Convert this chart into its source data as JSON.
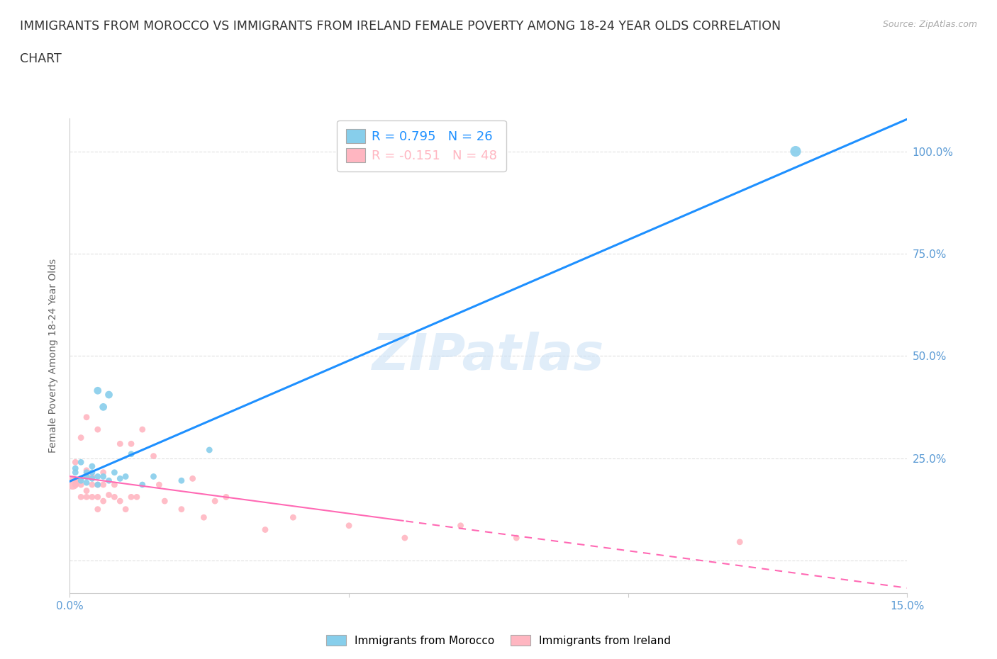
{
  "title_line1": "IMMIGRANTS FROM MOROCCO VS IMMIGRANTS FROM IRELAND FEMALE POVERTY AMONG 18-24 YEAR OLDS CORRELATION",
  "title_line2": "CHART",
  "source": "Source: ZipAtlas.com",
  "ylabel": "Female Poverty Among 18-24 Year Olds",
  "xlim": [
    0.0,
    0.15
  ],
  "ylim": [
    -0.08,
    1.08
  ],
  "xticks": [
    0.0,
    0.05,
    0.1,
    0.15
  ],
  "xticklabels": [
    "0.0%",
    "",
    "",
    "15.0%"
  ],
  "yticks_right": [
    0.0,
    0.25,
    0.5,
    0.75,
    1.0
  ],
  "yticklabels_right": [
    "",
    "25.0%",
    "50.0%",
    "75.0%",
    "100.0%"
  ],
  "morocco_color": "#87CEEB",
  "ireland_color": "#FFB6C1",
  "morocco_line_color": "#1E90FF",
  "ireland_line_color": "#FF69B4",
  "morocco_R": 0.795,
  "morocco_N": 26,
  "ireland_R": -0.151,
  "ireland_N": 48,
  "background_color": "#ffffff",
  "watermark": "ZIPatlas",
  "morocco_x": [
    0.001,
    0.001,
    0.002,
    0.002,
    0.003,
    0.003,
    0.003,
    0.004,
    0.004,
    0.004,
    0.005,
    0.005,
    0.005,
    0.006,
    0.006,
    0.007,
    0.007,
    0.008,
    0.009,
    0.01,
    0.011,
    0.013,
    0.015,
    0.02,
    0.025,
    0.13
  ],
  "morocco_y": [
    0.215,
    0.225,
    0.195,
    0.24,
    0.19,
    0.205,
    0.215,
    0.2,
    0.215,
    0.23,
    0.185,
    0.205,
    0.415,
    0.205,
    0.375,
    0.195,
    0.405,
    0.215,
    0.2,
    0.205,
    0.26,
    0.185,
    0.205,
    0.195,
    0.27,
    1.0
  ],
  "morocco_sizes": [
    40,
    40,
    40,
    40,
    40,
    40,
    40,
    40,
    40,
    40,
    40,
    40,
    60,
    40,
    60,
    40,
    60,
    40,
    40,
    40,
    40,
    40,
    40,
    40,
    40,
    120
  ],
  "ireland_x": [
    0.0005,
    0.001,
    0.001,
    0.001,
    0.002,
    0.002,
    0.002,
    0.002,
    0.003,
    0.003,
    0.003,
    0.003,
    0.003,
    0.004,
    0.004,
    0.004,
    0.005,
    0.005,
    0.005,
    0.005,
    0.006,
    0.006,
    0.006,
    0.007,
    0.008,
    0.008,
    0.009,
    0.009,
    0.01,
    0.011,
    0.011,
    0.012,
    0.013,
    0.015,
    0.016,
    0.017,
    0.02,
    0.022,
    0.024,
    0.026,
    0.028,
    0.035,
    0.04,
    0.05,
    0.06,
    0.07,
    0.08,
    0.12
  ],
  "ireland_y": [
    0.19,
    0.185,
    0.195,
    0.24,
    0.155,
    0.185,
    0.2,
    0.3,
    0.155,
    0.17,
    0.205,
    0.22,
    0.35,
    0.155,
    0.185,
    0.205,
    0.125,
    0.155,
    0.185,
    0.32,
    0.145,
    0.185,
    0.215,
    0.16,
    0.155,
    0.185,
    0.145,
    0.285,
    0.125,
    0.155,
    0.285,
    0.155,
    0.32,
    0.255,
    0.185,
    0.145,
    0.125,
    0.2,
    0.105,
    0.145,
    0.155,
    0.075,
    0.105,
    0.085,
    0.055,
    0.085,
    0.055,
    0.045
  ],
  "ireland_sizes": [
    200,
    40,
    40,
    40,
    40,
    40,
    40,
    40,
    40,
    40,
    40,
    40,
    40,
    40,
    40,
    40,
    40,
    40,
    40,
    40,
    40,
    40,
    40,
    40,
    40,
    40,
    40,
    40,
    40,
    40,
    40,
    40,
    40,
    40,
    40,
    40,
    40,
    40,
    40,
    40,
    40,
    40,
    40,
    40,
    40,
    40,
    40,
    40
  ],
  "grid_color": "#e0e0e0",
  "tick_color": "#5b9bd5",
  "axis_color": "#cccccc",
  "ylabel_color": "#666666",
  "title_color": "#333333",
  "title_fontsize": 12.5,
  "label_fontsize": 10,
  "tick_fontsize": 11,
  "legend_bottom_labels": [
    "Immigrants from Morocco",
    "Immigrants from Ireland"
  ]
}
